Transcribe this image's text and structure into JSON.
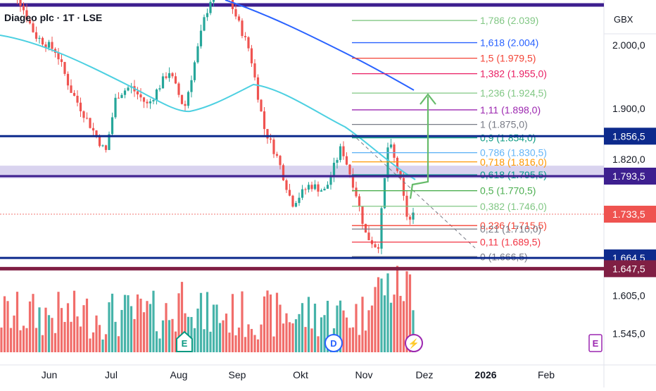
{
  "header": {
    "title": "Diageo plc · 1T · LSE",
    "currency": "GBX"
  },
  "chart_data": {
    "type": "candlestick",
    "title": "Diageo plc · 1T · LSE",
    "currency": "GBX",
    "x_axis": {
      "labels": [
        "Jun",
        "Jul",
        "Aug",
        "Sep",
        "Okt",
        "Nov",
        "Dez",
        "2026",
        "Feb"
      ],
      "bold": [
        "2026"
      ]
    },
    "y_axis": {
      "ticks": [
        "2.000,0",
        "1.900,0",
        "1.820,0",
        "1.605,0",
        "1.545,0"
      ],
      "range": [
        1545,
        2110
      ]
    },
    "price_badges": [
      {
        "label": "1.856,5",
        "value": 1856.5,
        "color": "#0d2a8c"
      },
      {
        "label": "1.793,5",
        "value": 1793.5,
        "color": "#3d1f8f"
      },
      {
        "label": "1.733,5",
        "value": 1733.5,
        "color": "#ef5350"
      },
      {
        "label": "1.664,5",
        "value": 1664.5,
        "color": "#0d2a8c"
      },
      {
        "label": "1.647,5",
        "value": 1647.5,
        "color": "#801f44"
      }
    ],
    "horizontal_lines": [
      {
        "value": 1856.5,
        "color": "#0d2a8c",
        "style": "solid"
      },
      {
        "value": 1793.5,
        "color": "#3d1f8f",
        "style": "solid"
      },
      {
        "value": 1664.5,
        "color": "#0d2a8c",
        "style": "solid"
      },
      {
        "value": 1647.5,
        "color": "#801f44",
        "style": "solid"
      }
    ],
    "zone": {
      "from": 1790,
      "to": 1810,
      "color": "#c9c0e8"
    },
    "fibonacci": [
      {
        "label": "1,786 (2.039)",
        "ratio": 1.786,
        "price": 2039,
        "color": "#81c784"
      },
      {
        "label": "1,618 (2.004)",
        "ratio": 1.618,
        "price": 2004,
        "color": "#2962ff"
      },
      {
        "label": "1,5 (1.979,5)",
        "ratio": 1.5,
        "price": 1979.5,
        "color": "#f44336"
      },
      {
        "label": "1,382 (1.955,0)",
        "ratio": 1.382,
        "price": 1955.0,
        "color": "#e91e63"
      },
      {
        "label": "1,236 (1.924,5)",
        "ratio": 1.236,
        "price": 1924.5,
        "color": "#81c784"
      },
      {
        "label": "1,11 (1.898,0)",
        "ratio": 1.11,
        "price": 1898.0,
        "color": "#9c27b0"
      },
      {
        "label": "1 (1.875,0)",
        "ratio": 1.0,
        "price": 1875.0,
        "color": "#787b86"
      },
      {
        "label": "0,9 (1.854,0)",
        "ratio": 0.9,
        "price": 1854.0,
        "color": "#089981"
      },
      {
        "label": "0,786 (1.830,5)",
        "ratio": 0.786,
        "price": 1830.5,
        "color": "#64b5f6"
      },
      {
        "label": "0,718 (1.816,0)",
        "ratio": 0.718,
        "price": 1816.0,
        "color": "#ff9800"
      },
      {
        "label": "0,618 (1.795,5)",
        "ratio": 0.618,
        "price": 1795.5,
        "color": "#009688"
      },
      {
        "label": "0,5 (1.770,5)",
        "ratio": 0.5,
        "price": 1770.5,
        "color": "#4caf50"
      },
      {
        "label": "0,382 (1.746,0)",
        "ratio": 0.382,
        "price": 1746.0,
        "color": "#81c784"
      },
      {
        "label": "0,236 (1.715,5)",
        "ratio": 0.236,
        "price": 1715.5,
        "color": "#f44336"
      },
      {
        "label": "0,21 (1.710,0)",
        "ratio": 0.21,
        "price": 1710.0,
        "color": "#787b86"
      },
      {
        "label": "0,11 (1.689,5)",
        "ratio": 0.11,
        "price": 1689.5,
        "color": "#f23645"
      },
      {
        "label": "0 (1.666,5)",
        "ratio": 0.0,
        "price": 1666.5,
        "color": "#787b86"
      }
    ],
    "event_markers": [
      {
        "label": "E",
        "month": "Aug",
        "color": "#089981"
      },
      {
        "label": "D",
        "month": "Okt/Nov",
        "color": "#2962ff"
      },
      {
        "label": "⚡",
        "month": "Nov",
        "color": "#9c27b0"
      },
      {
        "label": "E",
        "month": "Feb",
        "color": "#9c27b0"
      }
    ],
    "colors": {
      "up": "#26a69a",
      "down": "#ef5350",
      "ma_fast": "#4dd0e1",
      "ma_slow": "#2962ff",
      "arrow": "#66bb6a"
    }
  }
}
